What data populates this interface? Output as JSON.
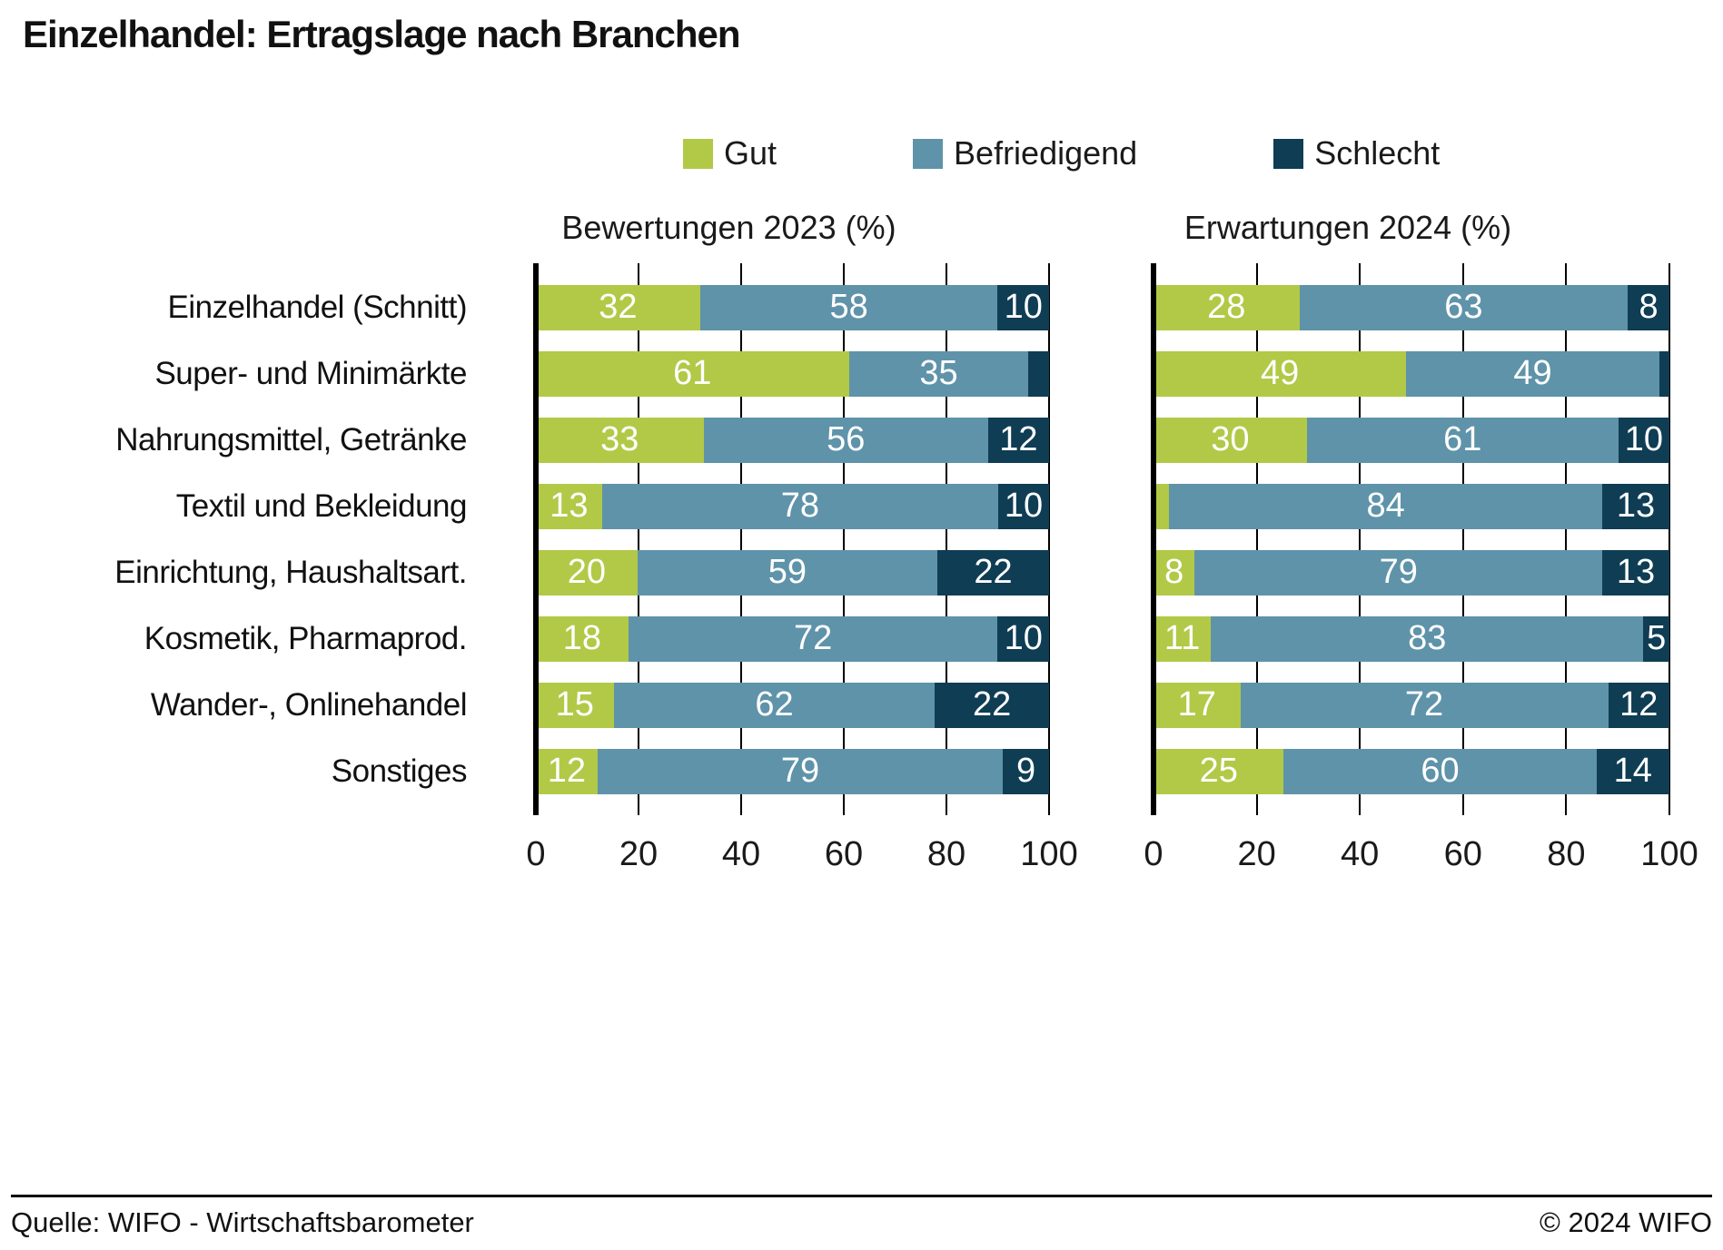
{
  "title": "Einzelhandel: Ertragslage nach Branchen",
  "footer": {
    "source": "Quelle: WIFO - Wirtschaftsbarometer",
    "copyright": "© 2024 WIFO"
  },
  "chart_data": {
    "type": "bar",
    "orientation": "horizontal",
    "stacked": true,
    "grid": true,
    "xlim": [
      0,
      100
    ],
    "axis_ticks": [
      "0",
      "20",
      "40",
      "60",
      "80",
      "100"
    ],
    "legend": [
      "Gut",
      "Befriedigend",
      "Schlecht"
    ],
    "legend_position": "top",
    "colors": {
      "Gut": "#b1c947",
      "Befriedigend": "#5f93a9",
      "Schlecht": "#0f3d54"
    },
    "label_hide_below": 5,
    "categories": [
      "Einzelhandel (Schnitt)",
      "Super- und Minimärkte",
      "Nahrungsmittel, Getränke",
      "Textil und Bekleidung",
      "Einrichtung, Haushaltsart.",
      "Kosmetik, Pharmaprod.",
      "Wander-, Onlinehandel",
      "Sonstiges"
    ],
    "panels": [
      {
        "title": "Bewertungen 2023 (%)",
        "series": [
          {
            "name": "Gut",
            "values": [
              32,
              61,
              33,
              13,
              20,
              18,
              15,
              12
            ]
          },
          {
            "name": "Befriedigend",
            "values": [
              58,
              35,
              56,
              78,
              59,
              72,
              62,
              79
            ]
          },
          {
            "name": "Schlecht",
            "values": [
              10,
              4,
              12,
              10,
              22,
              10,
              22,
              9
            ]
          }
        ]
      },
      {
        "title": "Erwartungen 2024 (%)",
        "series": [
          {
            "name": "Gut",
            "values": [
              28,
              49,
              30,
              3,
              8,
              11,
              17,
              25
            ]
          },
          {
            "name": "Befriedigend",
            "values": [
              63,
              49,
              61,
              84,
              79,
              83,
              72,
              60
            ]
          },
          {
            "name": "Schlecht",
            "values": [
              8,
              2,
              10,
              13,
              13,
              5,
              12,
              14
            ]
          }
        ]
      }
    ]
  }
}
